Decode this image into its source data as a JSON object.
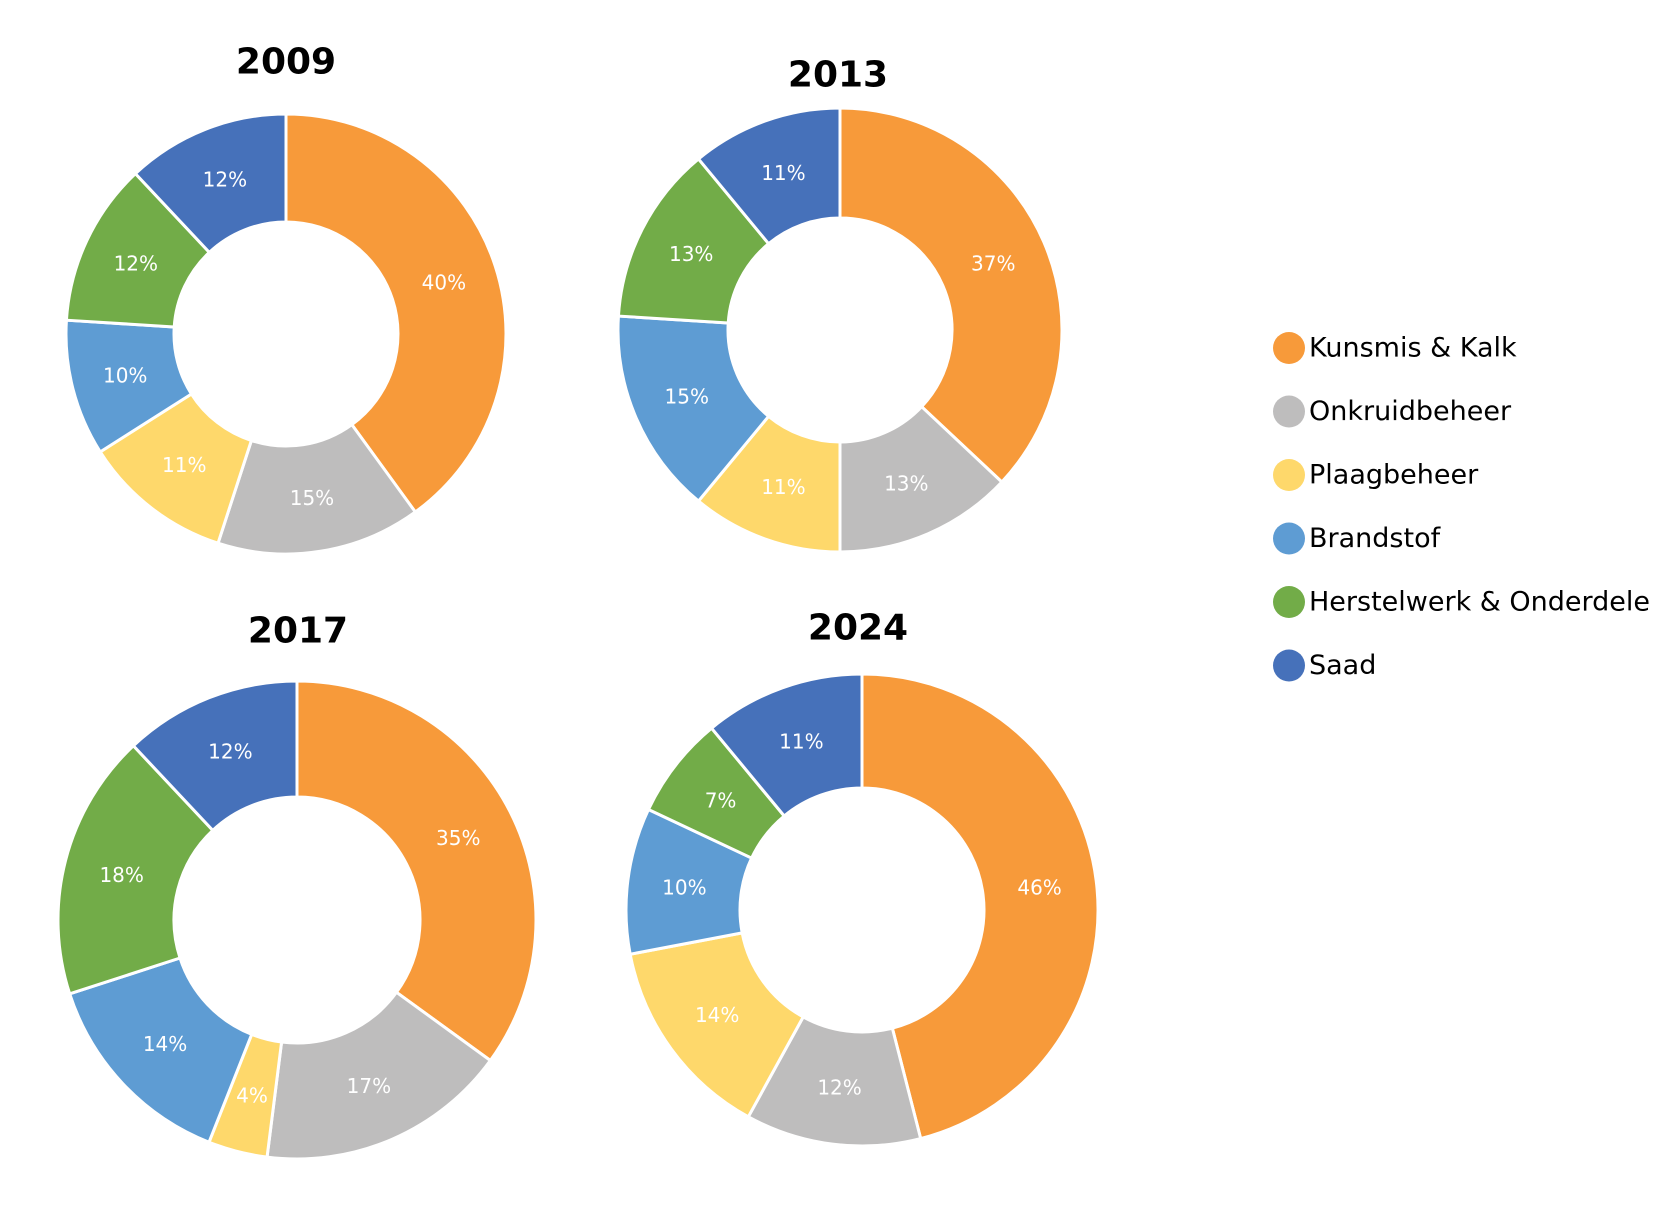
{
  "legend": {
    "items": [
      {
        "label": "Kunsmis & Kalk",
        "color": "#F79A3A"
      },
      {
        "label": "Onkruidbeheer",
        "color": "#BEBDBD"
      },
      {
        "label": "Plaagbeheer",
        "color": "#FED86B"
      },
      {
        "label": "Brandstof",
        "color": "#5E9CD3"
      },
      {
        "label": "Herstelwerk & Onderdele",
        "color": "#72AC48"
      },
      {
        "label": "Saad",
        "color": "#4671BA"
      }
    ]
  },
  "chart_data": [
    {
      "type": "pie",
      "title": "2009",
      "categories": [
        "Kunsmis & Kalk",
        "Onkruidbeheer",
        "Plaagbeheer",
        "Brandstof",
        "Herstelwerk & Onderdele",
        "Saad"
      ],
      "values": [
        40,
        15,
        11,
        10,
        12,
        12
      ],
      "labels": [
        "40%",
        "15%",
        "11%",
        "10%",
        "12%",
        "12%"
      ]
    },
    {
      "type": "pie",
      "title": "2013",
      "categories": [
        "Kunsmis & Kalk",
        "Onkruidbeheer",
        "Plaagbeheer",
        "Brandstof",
        "Herstelwerk & Onderdele",
        "Saad"
      ],
      "values": [
        37,
        13,
        11,
        15,
        13,
        11
      ],
      "labels": [
        "37%",
        "13%",
        "11%",
        "15%",
        "13%",
        "11%"
      ]
    },
    {
      "type": "pie",
      "title": "2017",
      "categories": [
        "Kunsmis & Kalk",
        "Onkruidbeheer",
        "Plaagbeheer",
        "Brandstof",
        "Herstelwerk & Onderdele",
        "Saad"
      ],
      "values": [
        35,
        17,
        4,
        14,
        18,
        12
      ],
      "labels": [
        "35%",
        "17%",
        "4%",
        "14%",
        "18%",
        "12%"
      ]
    },
    {
      "type": "pie",
      "title": "2024",
      "categories": [
        "Kunsmis & Kalk",
        "Onkruidbeheer",
        "Plaagbeheer",
        "Brandstof",
        "Herstelwerk & Onderdele",
        "Saad"
      ],
      "values": [
        46,
        12,
        14,
        10,
        7,
        11
      ],
      "labels": [
        "46%",
        "12%",
        "14%",
        "10%",
        "7%",
        "11%"
      ]
    }
  ]
}
